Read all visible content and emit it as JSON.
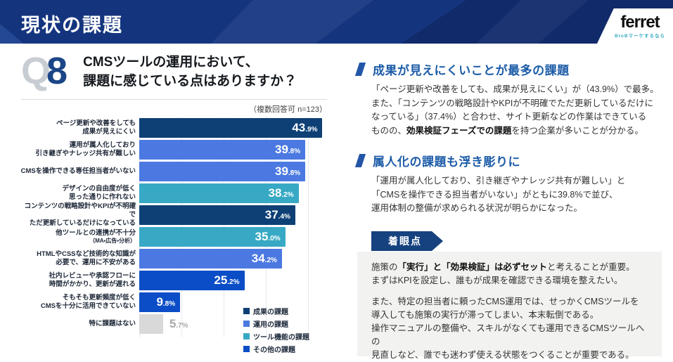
{
  "header": {
    "title": "現状の課題",
    "logo": {
      "brand": "ferret",
      "tagline": "BtoBマーケするなら"
    }
  },
  "question": {
    "q_label": "Q",
    "q_number": "8",
    "text": "CMSツールの運用において、\n課題に感じている点はありますか？",
    "note": "（複数回答可 n=123）"
  },
  "chart_data": {
    "type": "bar",
    "orientation": "horizontal",
    "title": "CMSツールの運用において、課題に感じている点はありますか？",
    "note": "（複数回答可 n=123）",
    "unit": "%",
    "xmax": 45,
    "grid": true,
    "colors": {
      "navy": "#0E4076",
      "royal": "#4B79E1",
      "teal": "#38A9C4",
      "blue": "#0B4DC7",
      "gray": "#D9D9D9"
    },
    "bars": [
      {
        "label": "ページ更新や改善をしても\n成果が見えにくい",
        "value": 43.9,
        "value_main": "43",
        "value_frac": ".9%",
        "color": "navy",
        "category": "成果の課題"
      },
      {
        "label": "運用が属人化しており\n引き継ぎやナレッジ共有が難しい",
        "value": 39.8,
        "value_main": "39",
        "value_frac": ".8%",
        "color": "royal",
        "category": "運用の課題"
      },
      {
        "label": "CMSを操作できる専任担当者がいない",
        "value": 39.8,
        "value_main": "39",
        "value_frac": ".8%",
        "color": "royal",
        "category": "運用の課題"
      },
      {
        "label": "デザインの自由度が低く\n思った通りに作れない",
        "value": 38.2,
        "value_main": "38",
        "value_frac": ".2%",
        "color": "teal",
        "category": "ツール機能の課題"
      },
      {
        "label": "コンテンツの戦略設計やKPIが不明確で\nただ更新しているだけになっている",
        "value": 37.4,
        "value_main": "37",
        "value_frac": ".4%",
        "color": "navy",
        "category": "成果の課題"
      },
      {
        "label": "他ツールとの連携が不十分",
        "sublabel": "（MA・広告・分析）",
        "value": 35.0,
        "value_main": "35",
        "value_frac": ".0%",
        "color": "teal",
        "category": "ツール機能の課題"
      },
      {
        "label": "HTMLやCSSなど技術的な知識が\n必要で、運用に不安がある",
        "value": 34.2,
        "value_main": "34",
        "value_frac": ".2%",
        "color": "royal",
        "category": "運用の課題"
      },
      {
        "label": "社内レビューや承認フローに\n時間がかかり、更新が遅れる",
        "value": 25.2,
        "value_main": "25",
        "value_frac": ".2%",
        "color": "blue",
        "category": "その他の課題"
      },
      {
        "label": "そもそも更新頻度が低く\nCMSを十分に活用できていない",
        "value": 9.8,
        "value_main": "9",
        "value_frac": ".8%",
        "color": "blue",
        "category": "その他の課題"
      },
      {
        "label": "特に課題はない",
        "value": 5.7,
        "value_main": "5",
        "value_frac": ".7%",
        "color": "gray",
        "category": "課題なし"
      }
    ],
    "legend": [
      {
        "label": "成果の課題",
        "color_key": "navy"
      },
      {
        "label": "運用の課題",
        "color_key": "royal"
      },
      {
        "label": "ツール機能の課題",
        "color_key": "teal"
      },
      {
        "label": "その他の課題",
        "color_key": "blue"
      }
    ]
  },
  "insights": {
    "sections": [
      {
        "heading": "成果が見えにくいことが最多の課題",
        "segments": [
          {
            "t": "「ページ更新や改善をしても、成果が見えにくい」が（43.9%）で最多。\nまた、「コンテンツの戦略設計やKPIが不明確でただ更新しているだけに\nなっている」（37.4%）と合わせ、サイト更新などの作業はできている\nものの、"
          },
          {
            "t": "効果検証フェーズでの課題",
            "b": true
          },
          {
            "t": "を持つ企業が多いことが分かる。"
          }
        ]
      },
      {
        "heading": "属人化の課題も浮き彫りに",
        "segments": [
          {
            "t": "「運用が属人化しており、引き継ぎやナレッジ共有が難しい」と\n「CMSを操作できる担当者がいない」がともに39.8%で並び、\n運用体制の整備が求められる状況が明らかになった。"
          }
        ]
      }
    ],
    "focus": {
      "banner": "着眼点",
      "paragraphs": [
        [
          {
            "t": "施策の"
          },
          {
            "t": "「実行」と「効果検証」は必ずセット",
            "b": true
          },
          {
            "t": "と考えることが重要。\nまずはKPIを設定し、誰もが成果を確認できる環境を整えたい。"
          }
        ],
        [
          {
            "t": "また、特定の担当者に頼ったCMS運用では、せっかくCMSツールを\n導入しても施策の実行が滞ってしまい、本末転倒である。\n操作マニュアルの整備や、スキルがなくても運用できるCMSツールへの\n見直しなど、誰でも迷わず使える状態をつくることが重要である。"
          }
        ]
      ]
    }
  }
}
